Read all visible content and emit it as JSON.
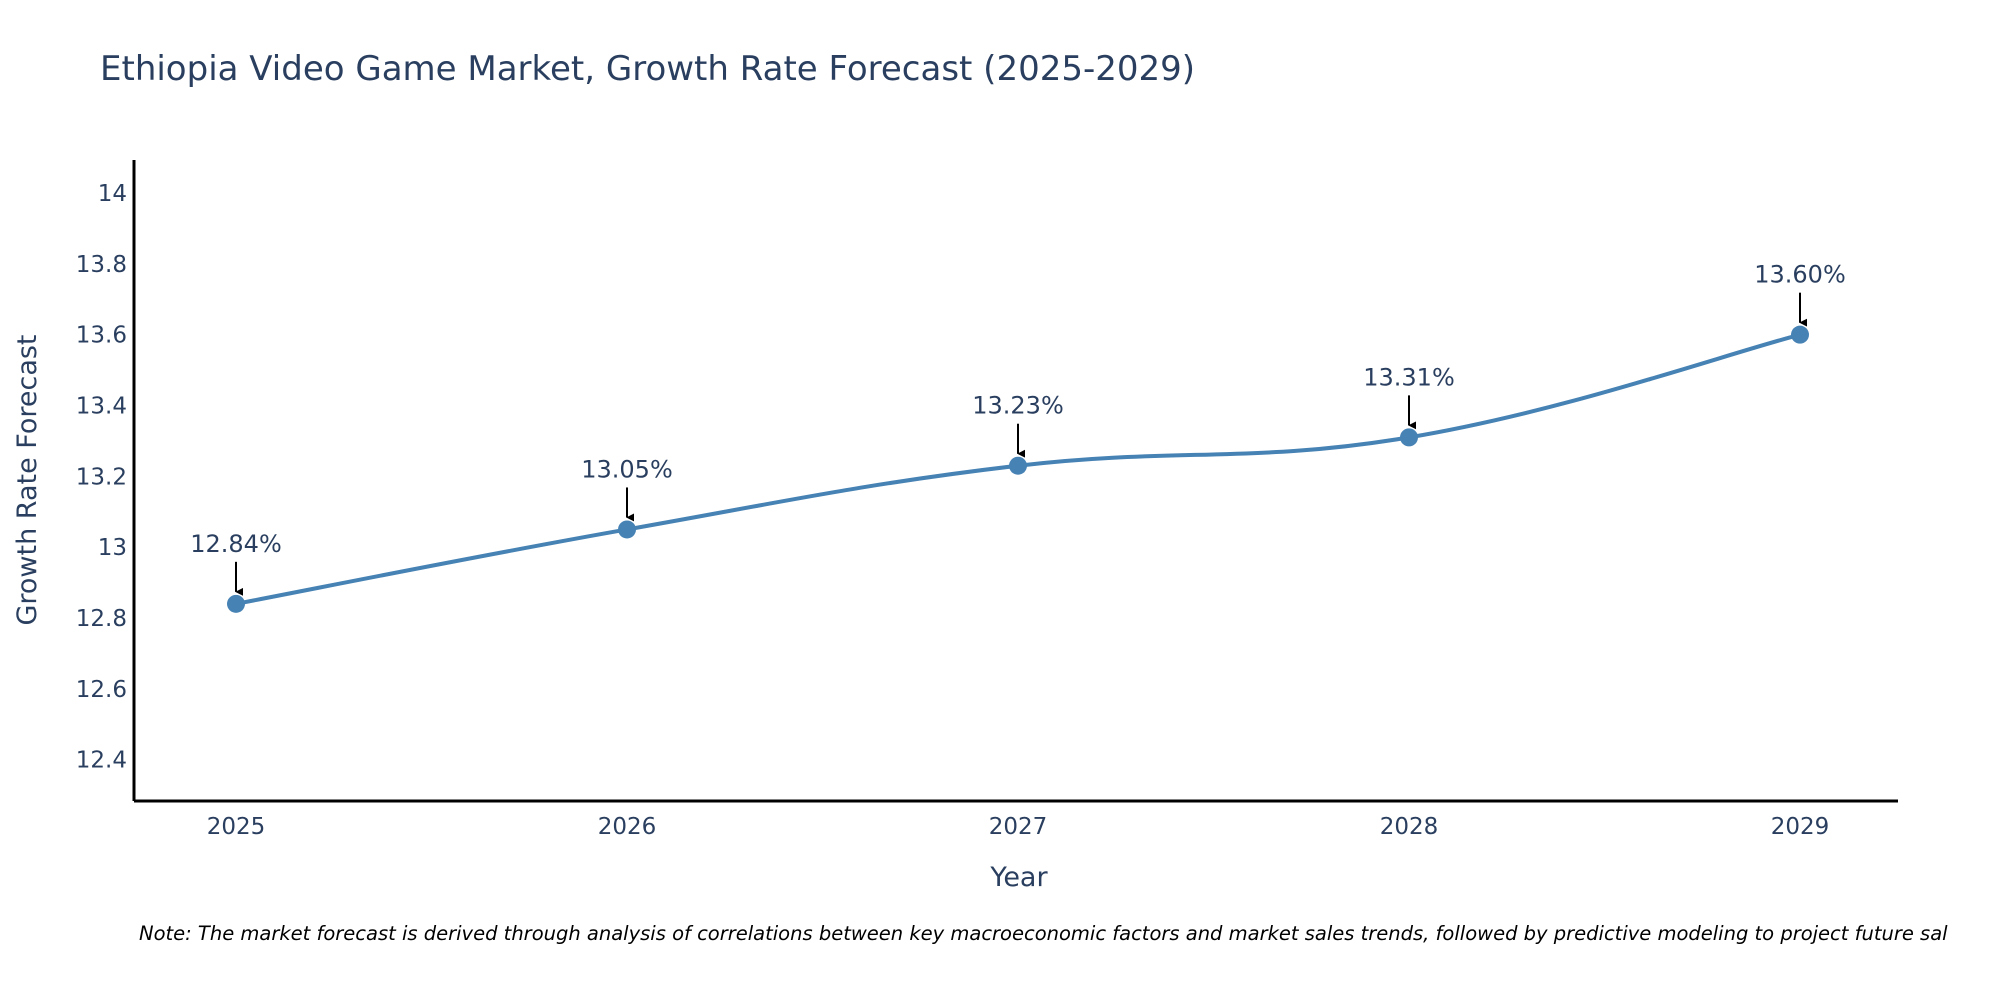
{
  "chart_data": {
    "type": "line",
    "title": "Ethiopia Video Game Market, Growth Rate Forecast (2025-2029)",
    "xlabel": "Year",
    "ylabel": "Growth Rate Forecast",
    "categories": [
      "2025",
      "2026",
      "2027",
      "2028",
      "2029"
    ],
    "values": [
      12.84,
      13.05,
      13.23,
      13.31,
      13.6
    ],
    "data_labels": [
      "12.84%",
      "13.05%",
      "13.23%",
      "13.31%",
      "13.60%"
    ],
    "yticks": [
      12.4,
      12.6,
      12.8,
      13,
      13.2,
      13.4,
      13.6,
      13.8,
      14
    ],
    "ytick_labels": [
      "12.4",
      "12.6",
      "12.8",
      "13",
      "13.2",
      "13.4",
      "13.6",
      "13.8",
      "14"
    ],
    "ylim": [
      12.34,
      14.1
    ],
    "grid": false,
    "line_color": "#4682b4",
    "marker_color": "#4682b4",
    "annotation_arrow_color": "#000000",
    "axis_color": "#000000",
    "note": "Note: The market forecast is derived through analysis of correlations between key macroeconomic factors and market sales trends, followed by predictive modeling to project future sal"
  }
}
